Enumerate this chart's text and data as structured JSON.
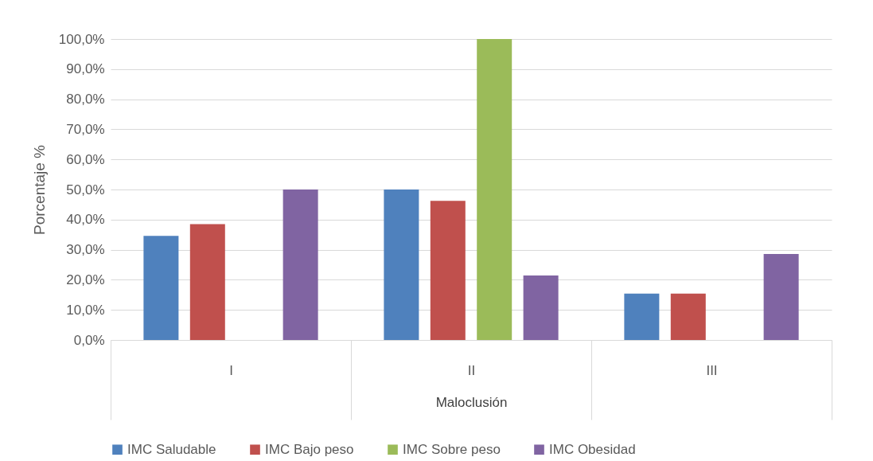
{
  "chart_data": {
    "type": "bar",
    "xlabel": "Maloclusión",
    "ylabel": "Porcentaje %",
    "categories": [
      "I",
      "II",
      "III"
    ],
    "series": [
      {
        "name": "IMC Saludable",
        "color": "#4f81bd",
        "values": [
          34.6,
          50.0,
          15.4
        ]
      },
      {
        "name": "IMC Bajo peso",
        "color": "#c0504d",
        "values": [
          38.5,
          46.2,
          15.4
        ]
      },
      {
        "name": "IMC Sobre peso",
        "color": "#9bbb59",
        "values": [
          0,
          100,
          0
        ]
      },
      {
        "name": "IMC Obesidad",
        "color": "#8064a2",
        "values": [
          50.0,
          21.4,
          28.6
        ]
      }
    ],
    "ylim": [
      0,
      100
    ],
    "yticks": [
      {
        "value": 0,
        "label": "0,0%"
      },
      {
        "value": 10,
        "label": "10,0%"
      },
      {
        "value": 20,
        "label": "20,0%"
      },
      {
        "value": 30,
        "label": "30,0%"
      },
      {
        "value": 40,
        "label": "40,0%"
      },
      {
        "value": 50,
        "label": "50,0%"
      },
      {
        "value": 60,
        "label": "60,0%"
      },
      {
        "value": 70,
        "label": "70,0%"
      },
      {
        "value": 80,
        "label": "80,0%"
      },
      {
        "value": 90,
        "label": "90,0%"
      },
      {
        "value": 100,
        "label": "100,0%"
      }
    ],
    "grid": "y",
    "legend": "bottom"
  }
}
